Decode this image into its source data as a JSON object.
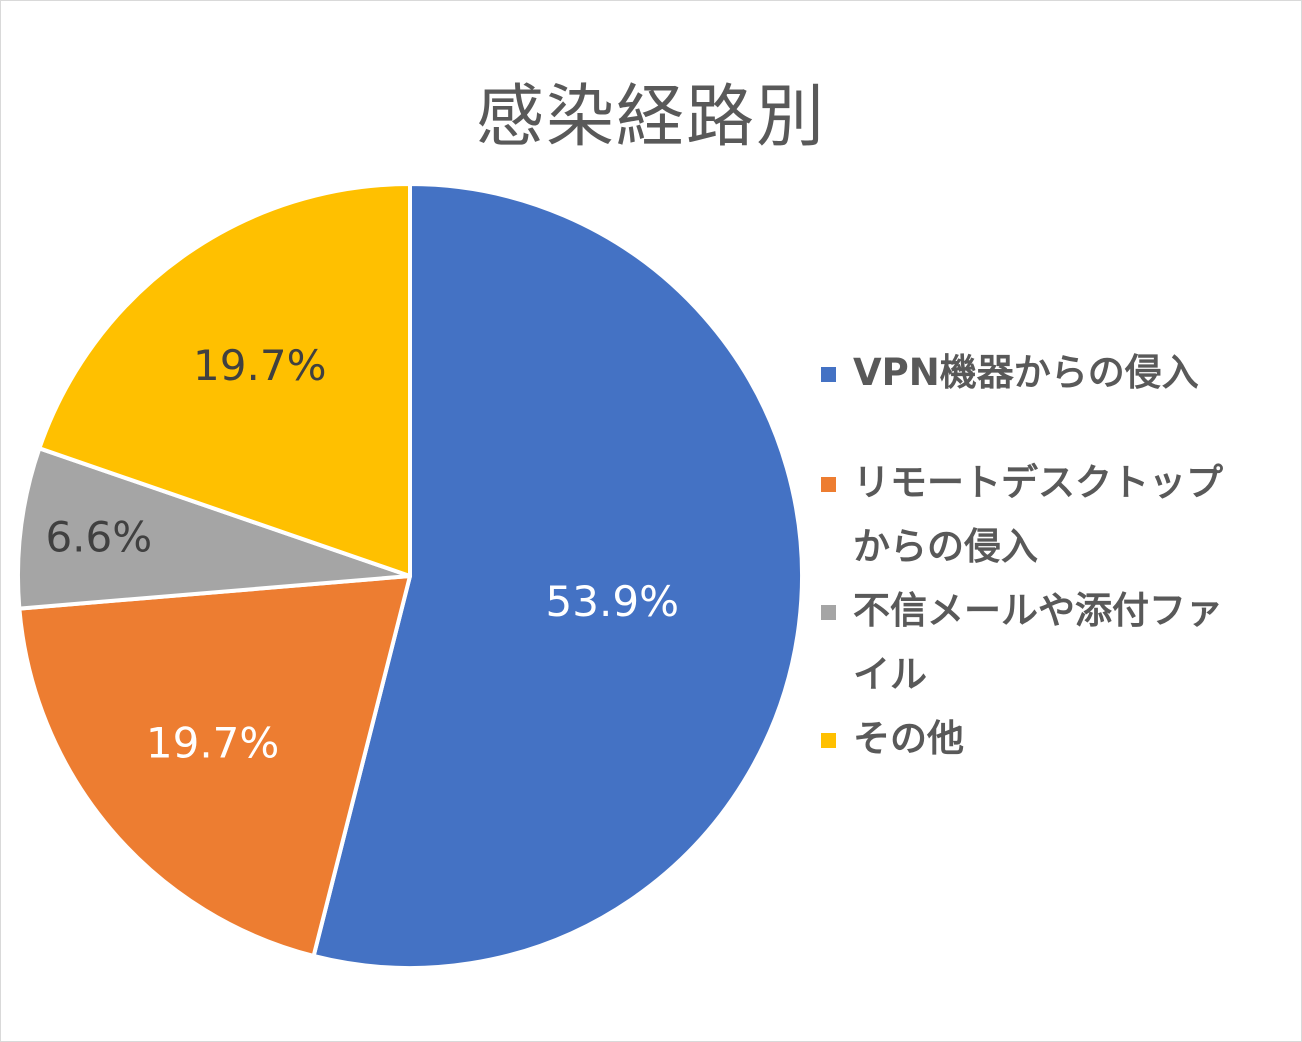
{
  "chart_data": {
    "type": "pie",
    "title": "感染経路別",
    "categories": [
      "VPN機器からの侵入",
      "リモートデスクトップからの侵入",
      "不信メールや添付ファイル",
      "その他"
    ],
    "values": [
      53.9,
      19.7,
      6.6,
      19.7
    ],
    "data_labels": [
      "53.9%",
      "19.7%",
      "6.6%",
      "19.7%"
    ],
    "colors": [
      "#4472C4",
      "#ED7D31",
      "#A5A5A5",
      "#FFC000"
    ],
    "label_colors": [
      "#ffffff",
      "#ffffff",
      "#404040",
      "#404040"
    ],
    "legend_position": "right",
    "legend_lines": [
      [
        "VPN機器からの侵入"
      ],
      [
        "リモートデスクトップ",
        "からの侵入"
      ],
      [
        "不信メールや添付ファ",
        "イル"
      ],
      [
        "その他"
      ]
    ]
  }
}
